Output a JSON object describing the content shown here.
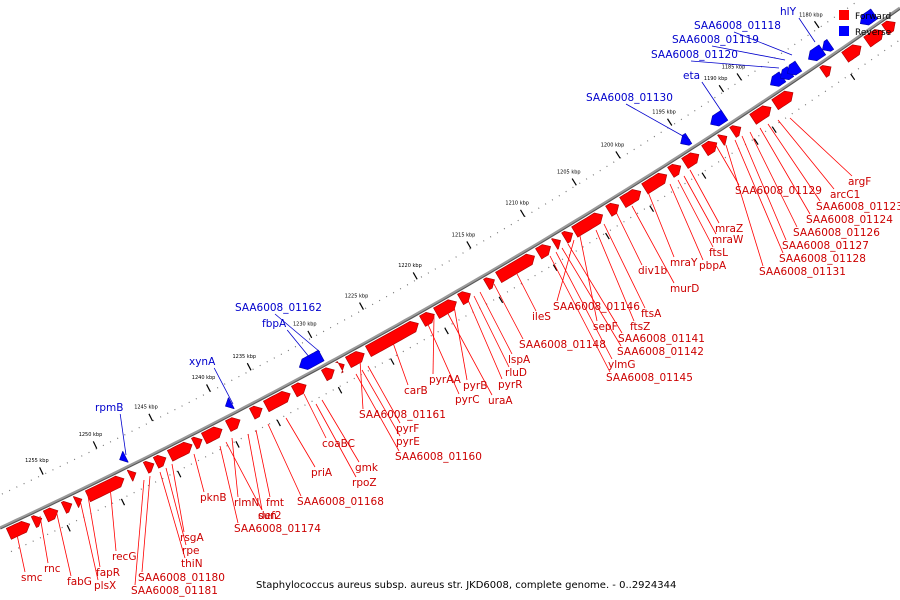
{
  "caption": "Staphylococcus aureus subsp. aureus str. JKD6008, complete genome. - 0..2924344",
  "legend": {
    "forward": {
      "label": "Forward",
      "color": "#ff0000"
    },
    "reverse": {
      "label": "Reverse",
      "color": "#0000ff"
    }
  },
  "colors": {
    "forward_label": "#cc0000",
    "reverse_label": "#0000cc",
    "backbone": "#888888"
  },
  "ticks": [
    "1180 kbp",
    "1185 kbp",
    "1190 kbp",
    "1195 kbp",
    "1200 kbp",
    "1205 kbp",
    "1210 kbp",
    "1215 kbp",
    "1220 kbp",
    "1225 kbp",
    "1230 kbp",
    "1235 kbp",
    "1240 kbp",
    "1245 kbp",
    "1250 kbp",
    "1255 kbp"
  ],
  "reverse_genes": [
    "hlY",
    "SAA6008_01118",
    "SAA6008_01119",
    "SAA6008_01120",
    "eta",
    "SAA6008_01130",
    "SAA6008_01162",
    "fbpA",
    "xynA",
    "rpmB"
  ],
  "forward_genes": [
    "argF",
    "arcC1",
    "SAA6008_01123",
    "SAA6008_01124",
    "SAA6008_01126",
    "SAA6008_01127",
    "SAA6008_01128",
    "SAA6008_01129",
    "SAA6008_01131",
    "mraZ",
    "mraW",
    "ftsL",
    "pbpA",
    "mraY",
    "murD",
    "div1b",
    "ftsA",
    "ftsZ",
    "sepF",
    "SAA6008_01146",
    "SAA6008_01141",
    "SAA6008_01142",
    "ylmG",
    "SAA6008_01145",
    "ileS",
    "SAA6008_01148",
    "lspA",
    "rluD",
    "pyrR",
    "pyrB",
    "uraA",
    "pyrAA",
    "pyrC",
    "carB",
    "SAA6008_01161",
    "pyrF",
    "pyrE",
    "SAA6008_01160",
    "coaBC",
    "gmk",
    "rpoZ",
    "priA",
    "SAA6008_01168",
    "fmt",
    "def2",
    "rlmN",
    "sun",
    "SAA6008_01174",
    "pknB",
    "rsgA",
    "rpe",
    "thiN",
    "SAA6008_01180",
    "SAA6008_01181",
    "recG",
    "fapR",
    "plsX",
    "fabG",
    "rnc",
    "smc"
  ]
}
